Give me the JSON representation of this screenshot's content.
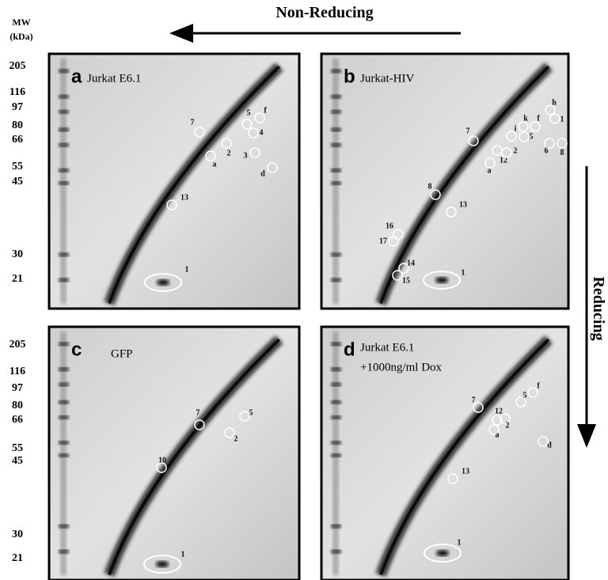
{
  "header": {
    "mw": "MW",
    "kda": "(kDa)",
    "non_reducing": "Non-Reducing",
    "reducing": "Reducing"
  },
  "mw_top": [
    "205",
    "116",
    "97",
    "80",
    "66",
    "55",
    "45",
    "30",
    "21"
  ],
  "mw_bottom": [
    "205",
    "116",
    "97",
    "80",
    "66",
    "55",
    "45",
    "30",
    "21"
  ],
  "panels": [
    {
      "letter": "a",
      "title": [
        "Jurkat E6.1"
      ],
      "spots": [
        "7",
        "5",
        "f",
        "4",
        "2",
        "a",
        "3",
        "d",
        "13",
        "1"
      ]
    },
    {
      "letter": "b",
      "title": [
        "Jurkat-HIV"
      ],
      "spots": [
        "7",
        "h",
        "1",
        "k",
        "f",
        "i",
        "5",
        "12",
        "2",
        "6",
        "g",
        "a",
        "8",
        "13",
        "16",
        "17",
        "14",
        "15",
        "1"
      ]
    },
    {
      "letter": "c",
      "title": [
        "GFP"
      ],
      "spots": [
        "7",
        "5",
        "2",
        "10",
        "1"
      ]
    },
    {
      "letter": "d",
      "title": [
        "Jurkat E6.1",
        "+1000ng/ml Dox"
      ],
      "spots": [
        "7",
        "5",
        "f",
        "12",
        "2",
        "a",
        "d",
        "13",
        "1"
      ]
    }
  ]
}
